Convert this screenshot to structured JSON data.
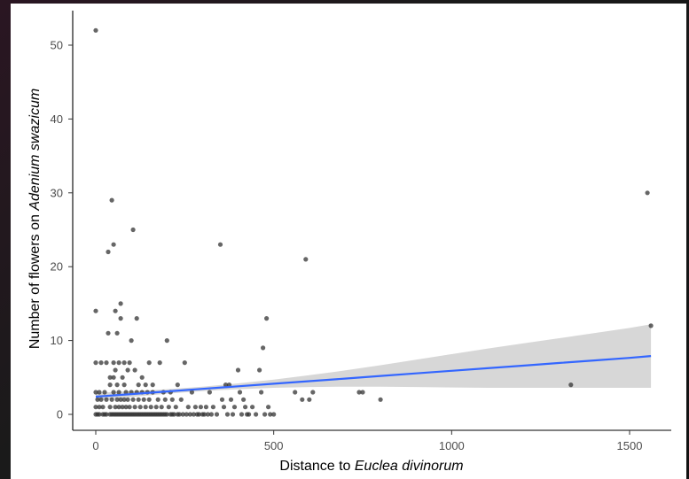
{
  "chart_data": {
    "type": "scatter",
    "xlabel_plain": "Distance to ",
    "xlabel_italic": "Euclea divinorum",
    "ylabel_plain": "Number of flowers on ",
    "ylabel_italic": "Adenium swazicum",
    "xlim": [
      0,
      1560
    ],
    "ylim": [
      0,
      52
    ],
    "x_ticks": [
      0,
      500,
      1000,
      1500
    ],
    "y_ticks": [
      0,
      10,
      20,
      30,
      40,
      50
    ],
    "grid": false,
    "colors": {
      "points": "#333333",
      "trend": "#3366ff",
      "band": "#d3d3d3",
      "axis": "#000000"
    },
    "trend": {
      "x": [
        0,
        100,
        200,
        300,
        400,
        500,
        600,
        700,
        800,
        900,
        1000,
        1100,
        1200,
        1300,
        1400,
        1500,
        1560
      ],
      "y": [
        2.4,
        2.75,
        3.1,
        3.45,
        3.8,
        4.15,
        4.5,
        4.85,
        5.2,
        5.55,
        5.9,
        6.25,
        6.6,
        6.95,
        7.3,
        7.65,
        7.9
      ],
      "lower": [
        1.9,
        2.35,
        2.8,
        3.15,
        3.4,
        3.6,
        3.7,
        3.75,
        3.75,
        3.7,
        3.65,
        3.6,
        3.6,
        3.6,
        3.6,
        3.6,
        3.6
      ],
      "upper": [
        2.9,
        3.15,
        3.4,
        3.75,
        4.2,
        4.7,
        5.3,
        5.95,
        6.65,
        7.4,
        8.15,
        8.9,
        9.6,
        10.3,
        11.0,
        11.7,
        12.2
      ]
    },
    "points": [
      [
        0,
        52
      ],
      [
        0,
        14
      ],
      [
        0,
        7
      ],
      [
        0,
        3
      ],
      [
        0,
        1
      ],
      [
        0,
        0
      ],
      [
        5,
        0
      ],
      [
        5,
        2
      ],
      [
        10,
        0
      ],
      [
        10,
        1
      ],
      [
        10,
        3
      ],
      [
        15,
        7
      ],
      [
        15,
        2
      ],
      [
        20,
        0
      ],
      [
        20,
        1
      ],
      [
        25,
        0
      ],
      [
        25,
        3
      ],
      [
        30,
        0
      ],
      [
        30,
        2
      ],
      [
        30,
        7
      ],
      [
        35,
        11
      ],
      [
        35,
        22
      ],
      [
        40,
        0
      ],
      [
        40,
        1
      ],
      [
        40,
        4
      ],
      [
        40,
        5
      ],
      [
        45,
        0
      ],
      [
        45,
        2
      ],
      [
        45,
        29
      ],
      [
        50,
        0
      ],
      [
        50,
        3
      ],
      [
        50,
        5
      ],
      [
        50,
        7
      ],
      [
        50,
        23
      ],
      [
        55,
        0
      ],
      [
        55,
        1
      ],
      [
        55,
        6
      ],
      [
        55,
        14
      ],
      [
        60,
        0
      ],
      [
        60,
        2
      ],
      [
        60,
        4
      ],
      [
        60,
        11
      ],
      [
        65,
        0
      ],
      [
        65,
        1
      ],
      [
        65,
        3
      ],
      [
        65,
        7
      ],
      [
        70,
        0
      ],
      [
        70,
        2
      ],
      [
        70,
        13
      ],
      [
        70,
        15
      ],
      [
        75,
        0
      ],
      [
        75,
        1
      ],
      [
        75,
        5
      ],
      [
        80,
        0
      ],
      [
        80,
        2
      ],
      [
        80,
        4
      ],
      [
        80,
        7
      ],
      [
        85,
        0
      ],
      [
        85,
        1
      ],
      [
        85,
        3
      ],
      [
        90,
        0
      ],
      [
        90,
        2
      ],
      [
        90,
        6
      ],
      [
        95,
        0
      ],
      [
        95,
        1
      ],
      [
        95,
        7
      ],
      [
        100,
        0
      ],
      [
        100,
        3
      ],
      [
        100,
        10
      ],
      [
        105,
        0
      ],
      [
        105,
        2
      ],
      [
        105,
        25
      ],
      [
        110,
        0
      ],
      [
        110,
        1
      ],
      [
        110,
        6
      ],
      [
        115,
        0
      ],
      [
        115,
        3
      ],
      [
        115,
        13
      ],
      [
        120,
        0
      ],
      [
        120,
        2
      ],
      [
        120,
        4
      ],
      [
        125,
        0
      ],
      [
        125,
        1
      ],
      [
        130,
        0
      ],
      [
        130,
        3
      ],
      [
        130,
        5
      ],
      [
        135,
        0
      ],
      [
        135,
        2
      ],
      [
        140,
        0
      ],
      [
        140,
        1
      ],
      [
        140,
        4
      ],
      [
        145,
        0
      ],
      [
        145,
        3
      ],
      [
        150,
        0
      ],
      [
        150,
        2
      ],
      [
        150,
        7
      ],
      [
        155,
        0
      ],
      [
        155,
        1
      ],
      [
        160,
        0
      ],
      [
        160,
        3
      ],
      [
        160,
        4
      ],
      [
        165,
        0
      ],
      [
        170,
        0
      ],
      [
        170,
        1
      ],
      [
        175,
        0
      ],
      [
        175,
        2
      ],
      [
        180,
        0
      ],
      [
        180,
        7
      ],
      [
        185,
        0
      ],
      [
        185,
        1
      ],
      [
        190,
        0
      ],
      [
        190,
        3
      ],
      [
        195,
        0
      ],
      [
        195,
        2
      ],
      [
        200,
        0
      ],
      [
        200,
        10
      ],
      [
        205,
        1
      ],
      [
        210,
        0
      ],
      [
        210,
        3
      ],
      [
        215,
        0
      ],
      [
        215,
        2
      ],
      [
        220,
        0
      ],
      [
        225,
        1
      ],
      [
        230,
        0
      ],
      [
        230,
        4
      ],
      [
        235,
        0
      ],
      [
        240,
        2
      ],
      [
        245,
        0
      ],
      [
        250,
        7
      ],
      [
        255,
        0
      ],
      [
        260,
        1
      ],
      [
        265,
        0
      ],
      [
        270,
        3
      ],
      [
        275,
        0
      ],
      [
        280,
        1
      ],
      [
        285,
        0
      ],
      [
        290,
        0
      ],
      [
        295,
        1
      ],
      [
        300,
        0
      ],
      [
        305,
        0
      ],
      [
        310,
        1
      ],
      [
        315,
        0
      ],
      [
        320,
        3
      ],
      [
        325,
        0
      ],
      [
        330,
        1
      ],
      [
        340,
        0
      ],
      [
        350,
        23
      ],
      [
        355,
        2
      ],
      [
        360,
        1
      ],
      [
        365,
        4
      ],
      [
        370,
        0
      ],
      [
        375,
        4
      ],
      [
        380,
        2
      ],
      [
        385,
        0
      ],
      [
        390,
        1
      ],
      [
        400,
        6
      ],
      [
        405,
        3
      ],
      [
        410,
        0
      ],
      [
        415,
        2
      ],
      [
        420,
        1
      ],
      [
        425,
        0
      ],
      [
        430,
        0
      ],
      [
        440,
        1
      ],
      [
        450,
        0
      ],
      [
        460,
        6
      ],
      [
        465,
        3
      ],
      [
        470,
        9
      ],
      [
        475,
        0
      ],
      [
        480,
        13
      ],
      [
        485,
        1
      ],
      [
        490,
        0
      ],
      [
        500,
        0
      ],
      [
        560,
        3
      ],
      [
        580,
        2
      ],
      [
        590,
        21
      ],
      [
        600,
        2
      ],
      [
        610,
        3
      ],
      [
        740,
        3
      ],
      [
        750,
        3
      ],
      [
        800,
        2
      ],
      [
        1335,
        4
      ],
      [
        1550,
        30
      ],
      [
        1560,
        12
      ]
    ]
  }
}
